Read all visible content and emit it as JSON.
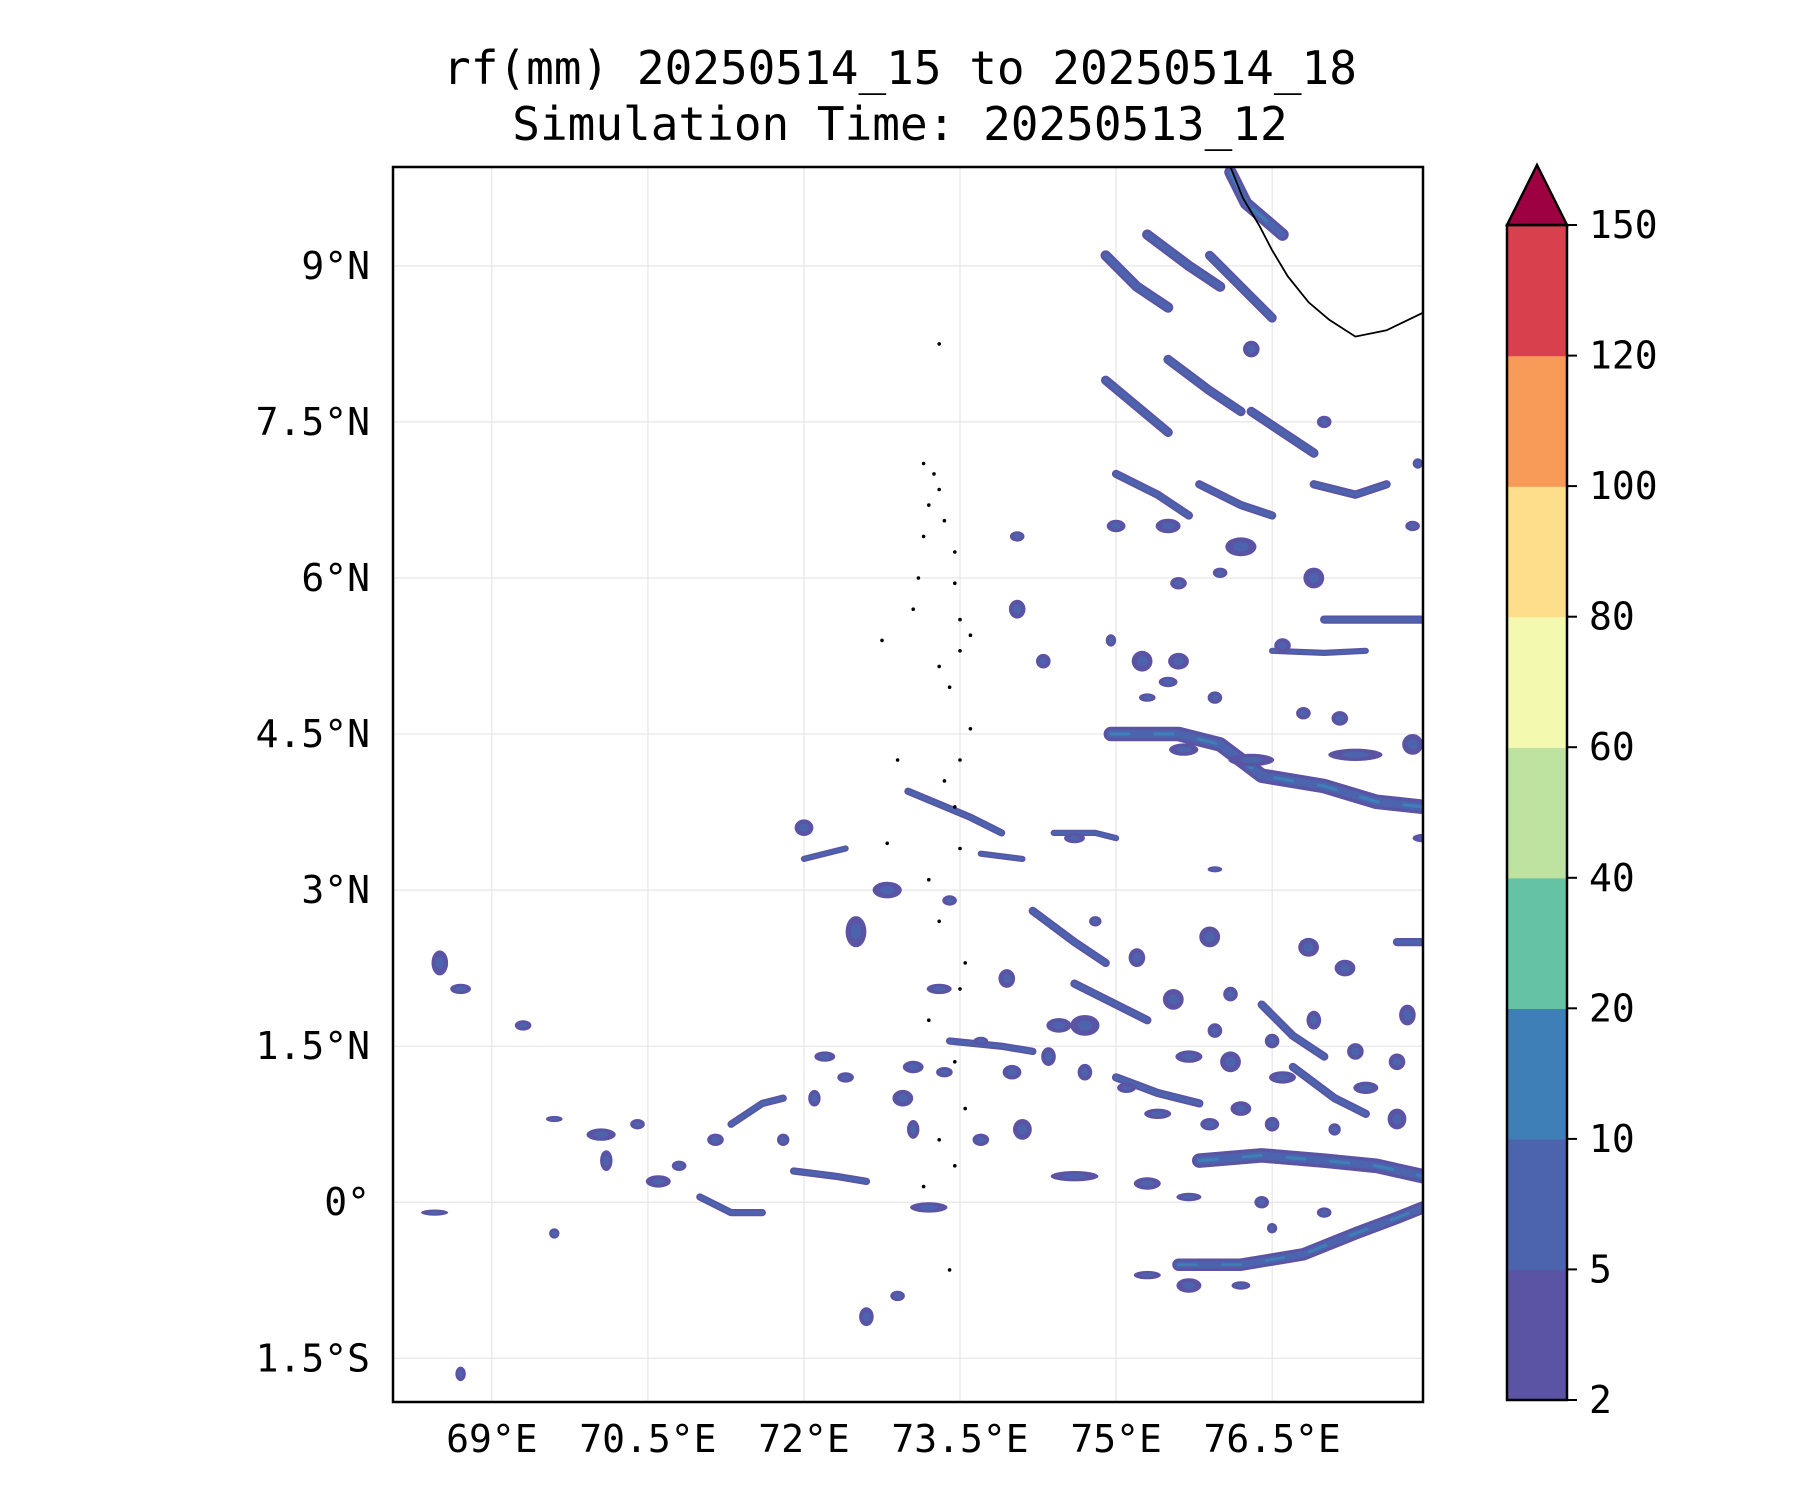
{
  "title": {
    "line1": "rf(mm) 20250514_15 to 20250514_18",
    "line2": "Simulation Time: 20250513_12"
  },
  "map": {
    "lon_ticks": [
      {
        "value": 69,
        "label": "69°E"
      },
      {
        "value": 70.5,
        "label": "70.5°E"
      },
      {
        "value": 72,
        "label": "72°E"
      },
      {
        "value": 73.5,
        "label": "73.5°E"
      },
      {
        "value": 75,
        "label": "75°E"
      },
      {
        "value": 76.5,
        "label": "76.5°E"
      }
    ],
    "lat_ticks": [
      {
        "value": 9,
        "label": "9°N"
      },
      {
        "value": 7.5,
        "label": "7.5°N"
      },
      {
        "value": 6,
        "label": "6°N"
      },
      {
        "value": 4.5,
        "label": "4.5°N"
      },
      {
        "value": 3,
        "label": "3°N"
      },
      {
        "value": 1.5,
        "label": "1.5°N"
      },
      {
        "value": 0,
        "label": "0°"
      },
      {
        "value": -1.5,
        "label": "1.5°S"
      }
    ],
    "extent": {
      "lon_min": 68.05,
      "lon_max": 77.95,
      "lat_min": -1.92,
      "lat_max": 9.95
    },
    "grid": true,
    "colors": {
      "rain_light": "#5b53a4",
      "rain_mid": "#4b64ad",
      "rain_heavy": "#3e7fb8",
      "coast": "#000000"
    },
    "rain_bands": [
      {
        "points": [
          [
            74.95,
            4.5
          ],
          [
            75.6,
            4.5
          ],
          [
            76.0,
            4.4
          ],
          [
            76.4,
            4.1
          ],
          [
            77.0,
            4.0
          ],
          [
            77.5,
            3.85
          ],
          [
            77.95,
            3.8
          ]
        ],
        "width": 0.14
      },
      {
        "points": [
          [
            75.6,
            -0.6
          ],
          [
            76.2,
            -0.6
          ],
          [
            76.8,
            -0.5
          ],
          [
            77.3,
            -0.3
          ],
          [
            77.7,
            -0.15
          ],
          [
            77.95,
            -0.05
          ]
        ],
        "width": 0.12
      },
      {
        "points": [
          [
            75.8,
            0.4
          ],
          [
            76.4,
            0.45
          ],
          [
            77.0,
            0.4
          ],
          [
            77.5,
            0.35
          ],
          [
            77.95,
            0.25
          ]
        ],
        "width": 0.14
      },
      {
        "points": [
          [
            74.9,
            9.1
          ],
          [
            75.2,
            8.8
          ],
          [
            75.5,
            8.6
          ]
        ],
        "width": 0.1
      },
      {
        "points": [
          [
            75.3,
            9.3
          ],
          [
            75.7,
            9.0
          ],
          [
            76.0,
            8.8
          ]
        ],
        "width": 0.1
      },
      {
        "points": [
          [
            75.9,
            9.1
          ],
          [
            76.2,
            8.8
          ],
          [
            76.5,
            8.5
          ]
        ],
        "width": 0.09
      },
      {
        "points": [
          [
            76.1,
            9.9
          ],
          [
            76.25,
            9.6
          ],
          [
            76.6,
            9.3
          ]
        ],
        "width": 0.12
      },
      {
        "points": [
          [
            74.9,
            7.9
          ],
          [
            75.2,
            7.65
          ],
          [
            75.5,
            7.4
          ]
        ],
        "width": 0.09
      },
      {
        "points": [
          [
            75.5,
            8.1
          ],
          [
            75.9,
            7.8
          ],
          [
            76.2,
            7.6
          ]
        ],
        "width": 0.09
      },
      {
        "points": [
          [
            76.3,
            7.6
          ],
          [
            76.6,
            7.4
          ],
          [
            76.9,
            7.2
          ]
        ],
        "width": 0.09
      },
      {
        "points": [
          [
            75.0,
            7.0
          ],
          [
            75.4,
            6.8
          ],
          [
            75.7,
            6.6
          ]
        ],
        "width": 0.08
      },
      {
        "points": [
          [
            75.8,
            6.9
          ],
          [
            76.2,
            6.7
          ],
          [
            76.5,
            6.6
          ]
        ],
        "width": 0.08
      },
      {
        "points": [
          [
            76.9,
            6.9
          ],
          [
            77.3,
            6.8
          ],
          [
            77.6,
            6.9
          ]
        ],
        "width": 0.08
      },
      {
        "points": [
          [
            74.2,
            2.8
          ],
          [
            74.6,
            2.5
          ],
          [
            74.9,
            2.3
          ]
        ],
        "width": 0.08
      },
      {
        "points": [
          [
            74.6,
            2.1
          ],
          [
            75.0,
            1.9
          ],
          [
            75.3,
            1.75
          ]
        ],
        "width": 0.08
      },
      {
        "points": [
          [
            76.4,
            1.9
          ],
          [
            76.7,
            1.6
          ],
          [
            77.0,
            1.4
          ]
        ],
        "width": 0.08
      },
      {
        "points": [
          [
            75.0,
            1.2
          ],
          [
            75.4,
            1.05
          ],
          [
            75.8,
            0.95
          ]
        ],
        "width": 0.08
      },
      {
        "points": [
          [
            76.7,
            1.3
          ],
          [
            77.1,
            1.0
          ],
          [
            77.4,
            0.85
          ]
        ],
        "width": 0.08
      },
      {
        "points": [
          [
            77.7,
            2.5
          ],
          [
            77.95,
            2.5
          ]
        ],
        "width": 0.08
      },
      {
        "points": [
          [
            73.4,
            1.55
          ],
          [
            73.9,
            1.5
          ],
          [
            74.2,
            1.45
          ]
        ],
        "width": 0.07
      },
      {
        "points": [
          [
            73.0,
            3.95
          ],
          [
            73.6,
            3.7
          ],
          [
            73.9,
            3.55
          ]
        ],
        "width": 0.07
      },
      {
        "points": [
          [
            71.3,
            0.75
          ],
          [
            71.6,
            0.95
          ],
          [
            71.8,
            1.0
          ]
        ],
        "width": 0.07
      },
      {
        "points": [
          [
            71.9,
            0.3
          ],
          [
            72.3,
            0.25
          ],
          [
            72.6,
            0.2
          ]
        ],
        "width": 0.07
      },
      {
        "points": [
          [
            71.0,
            0.05
          ],
          [
            71.3,
            -0.1
          ],
          [
            71.6,
            -0.1
          ]
        ],
        "width": 0.07
      },
      {
        "points": [
          [
            72.0,
            3.3
          ],
          [
            72.4,
            3.4
          ]
        ],
        "width": 0.06
      },
      {
        "points": [
          [
            77.0,
            5.6
          ],
          [
            77.5,
            5.6
          ],
          [
            77.95,
            5.6
          ]
        ],
        "width": 0.08
      },
      {
        "points": [
          [
            76.5,
            5.3
          ],
          [
            77.0,
            5.28
          ],
          [
            77.4,
            5.3
          ]
        ],
        "width": 0.06
      },
      {
        "points": [
          [
            74.4,
            3.55
          ],
          [
            74.8,
            3.55
          ],
          [
            75.0,
            3.5
          ]
        ],
        "width": 0.06
      },
      {
        "points": [
          [
            73.7,
            3.35
          ],
          [
            74.1,
            3.3
          ]
        ],
        "width": 0.06
      }
    ],
    "rain_blobs": [
      [
        68.5,
        2.3,
        0.08,
        0.12
      ],
      [
        68.7,
        2.05,
        0.1,
        0.05
      ],
      [
        69.3,
        1.7,
        0.08,
        0.05
      ],
      [
        70.05,
        0.65,
        0.14,
        0.06
      ],
      [
        70.1,
        0.4,
        0.06,
        0.1
      ],
      [
        69.6,
        -0.3,
        0.05,
        0.05
      ],
      [
        68.7,
        -1.65,
        0.05,
        0.07
      ],
      [
        68.45,
        -0.1,
        0.13,
        0.03
      ],
      [
        72.6,
        -1.1,
        0.07,
        0.09
      ],
      [
        72.9,
        -0.9,
        0.07,
        0.05
      ],
      [
        73.05,
        0.7,
        0.06,
        0.09
      ],
      [
        73.2,
        -0.05,
        0.18,
        0.05
      ],
      [
        72.0,
        3.6,
        0.09,
        0.08
      ],
      [
        72.5,
        2.6,
        0.1,
        0.15
      ],
      [
        72.8,
        3.0,
        0.14,
        0.08
      ],
      [
        73.4,
        2.9,
        0.07,
        0.05
      ],
      [
        73.05,
        1.3,
        0.1,
        0.06
      ],
      [
        73.35,
        1.25,
        0.08,
        0.05
      ],
      [
        73.3,
        2.05,
        0.12,
        0.05
      ],
      [
        74.0,
        1.25,
        0.09,
        0.07
      ],
      [
        74.35,
        1.4,
        0.07,
        0.09
      ],
      [
        74.7,
        1.25,
        0.07,
        0.08
      ],
      [
        75.1,
        1.1,
        0.09,
        0.05
      ],
      [
        75.7,
        1.4,
        0.13,
        0.06
      ],
      [
        76.1,
        1.35,
        0.1,
        0.1
      ],
      [
        76.6,
        1.2,
        0.13,
        0.06
      ],
      [
        76.2,
        0.9,
        0.1,
        0.07
      ],
      [
        75.4,
        0.85,
        0.13,
        0.05
      ],
      [
        75.9,
        0.75,
        0.09,
        0.06
      ],
      [
        76.5,
        0.75,
        0.07,
        0.07
      ],
      [
        77.1,
        0.7,
        0.06,
        0.06
      ],
      [
        77.3,
        1.45,
        0.08,
        0.08
      ],
      [
        77.7,
        0.8,
        0.09,
        0.1
      ],
      [
        77.7,
        1.35,
        0.08,
        0.08
      ],
      [
        77.8,
        1.8,
        0.08,
        0.1
      ],
      [
        77.2,
        2.25,
        0.1,
        0.08
      ],
      [
        77.4,
        1.1,
        0.12,
        0.06
      ],
      [
        75.95,
        1.65,
        0.07,
        0.07
      ],
      [
        75.55,
        1.95,
        0.1,
        0.1
      ],
      [
        76.1,
        2.0,
        0.07,
        0.07
      ],
      [
        76.9,
        1.75,
        0.07,
        0.09
      ],
      [
        76.5,
        1.55,
        0.07,
        0.07
      ],
      [
        76.85,
        2.45,
        0.1,
        0.09
      ],
      [
        75.9,
        2.55,
        0.1,
        0.1
      ],
      [
        75.2,
        2.35,
        0.08,
        0.09
      ],
      [
        74.8,
        2.7,
        0.06,
        0.05
      ],
      [
        74.45,
        1.7,
        0.12,
        0.07
      ],
      [
        73.7,
        1.55,
        0.07,
        0.04
      ],
      [
        74.6,
        0.25,
        0.23,
        0.05
      ],
      [
        75.3,
        0.18,
        0.13,
        0.06
      ],
      [
        75.7,
        0.05,
        0.12,
        0.04
      ],
      [
        76.4,
        0.0,
        0.07,
        0.06
      ],
      [
        76.5,
        -0.25,
        0.05,
        0.05
      ],
      [
        77.0,
        -0.1,
        0.07,
        0.05
      ],
      [
        75.3,
        -0.7,
        0.13,
        0.04
      ],
      [
        75.7,
        -0.8,
        0.12,
        0.07
      ],
      [
        76.2,
        -0.8,
        0.09,
        0.04
      ],
      [
        74.3,
        5.2,
        0.07,
        0.07
      ],
      [
        74.95,
        5.4,
        0.05,
        0.06
      ],
      [
        75.25,
        5.2,
        0.1,
        0.1
      ],
      [
        75.6,
        5.2,
        0.1,
        0.08
      ],
      [
        75.5,
        5.0,
        0.09,
        0.05
      ],
      [
        75.3,
        4.85,
        0.08,
        0.04
      ],
      [
        75.95,
        4.85,
        0.07,
        0.06
      ],
      [
        76.8,
        4.7,
        0.07,
        0.06
      ],
      [
        77.85,
        4.4,
        0.1,
        0.1
      ],
      [
        77.95,
        3.5,
        0.1,
        0.04
      ],
      [
        77.3,
        4.3,
        0.26,
        0.06
      ],
      [
        76.3,
        4.25,
        0.22,
        0.06
      ],
      [
        75.65,
        4.35,
        0.14,
        0.06
      ],
      [
        74.05,
        6.4,
        0.07,
        0.05
      ],
      [
        75.5,
        6.5,
        0.12,
        0.07
      ],
      [
        76.2,
        6.3,
        0.15,
        0.09
      ],
      [
        76.9,
        6.0,
        0.1,
        0.1
      ],
      [
        77.85,
        6.5,
        0.07,
        0.05
      ],
      [
        76.0,
        6.05,
        0.07,
        0.05
      ],
      [
        74.05,
        5.7,
        0.08,
        0.09
      ],
      [
        75.0,
        6.5,
        0.09,
        0.06
      ],
      [
        75.6,
        5.95,
        0.08,
        0.06
      ],
      [
        76.6,
        5.35,
        0.08,
        0.07
      ],
      [
        77.15,
        4.65,
        0.08,
        0.07
      ],
      [
        73.95,
        2.15,
        0.08,
        0.09
      ],
      [
        74.6,
        3.5,
        0.1,
        0.05
      ],
      [
        75.95,
        3.2,
        0.07,
        0.03
      ],
      [
        72.1,
        1.0,
        0.06,
        0.08
      ],
      [
        71.8,
        0.6,
        0.06,
        0.06
      ],
      [
        72.4,
        1.2,
        0.08,
        0.05
      ],
      [
        72.2,
        1.4,
        0.1,
        0.05
      ],
      [
        70.6,
        0.2,
        0.12,
        0.06
      ],
      [
        70.8,
        0.35,
        0.07,
        0.05
      ],
      [
        71.15,
        0.6,
        0.08,
        0.06
      ],
      [
        70.4,
        0.75,
        0.07,
        0.05
      ],
      [
        69.6,
        0.8,
        0.08,
        0.03
      ],
      [
        72.95,
        1.0,
        0.1,
        0.08
      ],
      [
        74.1,
        0.7,
        0.09,
        0.1
      ],
      [
        73.7,
        0.6,
        0.08,
        0.06
      ],
      [
        74.7,
        1.7,
        0.14,
        0.1
      ],
      [
        76.3,
        8.2,
        0.08,
        0.08
      ],
      [
        77.0,
        7.5,
        0.07,
        0.06
      ],
      [
        77.9,
        7.1,
        0.05,
        0.05
      ]
    ],
    "coastline": [
      [
        76.1,
        9.95
      ],
      [
        76.22,
        9.65
      ],
      [
        76.38,
        9.38
      ],
      [
        76.5,
        9.15
      ],
      [
        76.65,
        8.9
      ],
      [
        76.85,
        8.65
      ],
      [
        77.05,
        8.48
      ],
      [
        77.3,
        8.32
      ],
      [
        77.6,
        8.38
      ],
      [
        77.95,
        8.55
      ]
    ],
    "islands": [
      [
        73.3,
        8.25
      ],
      [
        73.15,
        7.1
      ],
      [
        73.25,
        7.0
      ],
      [
        73.3,
        6.85
      ],
      [
        73.2,
        6.7
      ],
      [
        73.35,
        6.55
      ],
      [
        73.15,
        6.4
      ],
      [
        73.45,
        6.25
      ],
      [
        73.1,
        6.0
      ],
      [
        73.05,
        5.7
      ],
      [
        73.45,
        5.95
      ],
      [
        73.5,
        5.6
      ],
      [
        73.6,
        5.45
      ],
      [
        73.5,
        5.3
      ],
      [
        73.3,
        5.15
      ],
      [
        73.4,
        4.95
      ],
      [
        73.6,
        4.55
      ],
      [
        73.5,
        4.25
      ],
      [
        73.35,
        4.05
      ],
      [
        73.45,
        3.8
      ],
      [
        73.5,
        3.4
      ],
      [
        73.2,
        3.1
      ],
      [
        73.3,
        2.7
      ],
      [
        73.55,
        2.3
      ],
      [
        73.5,
        2.05
      ],
      [
        73.2,
        1.75
      ],
      [
        73.45,
        1.35
      ],
      [
        73.55,
        0.9
      ],
      [
        73.3,
        0.6
      ],
      [
        73.45,
        0.35
      ],
      [
        73.15,
        0.15
      ],
      [
        73.4,
        -0.65
      ],
      [
        72.9,
        4.25
      ],
      [
        72.75,
        5.4
      ],
      [
        72.8,
        3.45
      ]
    ]
  },
  "colorbar": {
    "levels": [
      2,
      5,
      10,
      20,
      40,
      60,
      80,
      100,
      120,
      150
    ],
    "tick_labels": [
      "2",
      "5",
      "10",
      "20",
      "40",
      "60",
      "80",
      "100",
      "120",
      "150"
    ],
    "colors": [
      "#5b53a4",
      "#4b64ad",
      "#3e7fb8",
      "#66c2a5",
      "#bee3a0",
      "#f3f9ae",
      "#fddf8b",
      "#f89a58",
      "#d8404d",
      "#9e0142"
    ],
    "extend": "max"
  }
}
